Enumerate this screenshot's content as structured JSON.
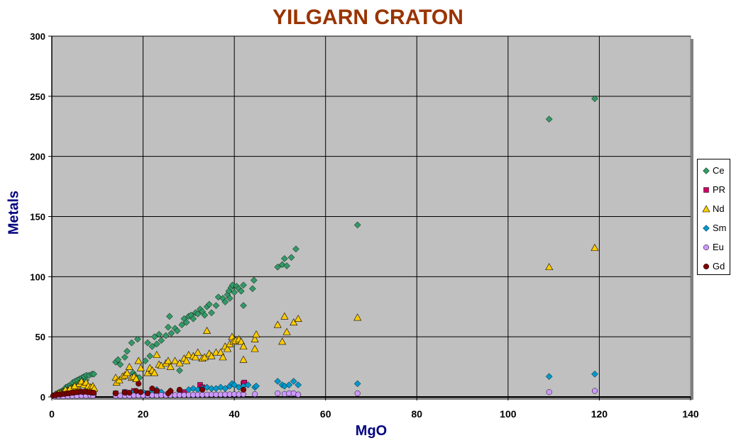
{
  "chart_data": {
    "type": "scatter",
    "title": "YILGARN CRATON",
    "xlabel": "MgO",
    "ylabel": "Metals",
    "xlim": [
      0,
      140
    ],
    "ylim": [
      0,
      300
    ],
    "x_ticks": [
      0,
      20,
      40,
      60,
      80,
      100,
      120,
      140
    ],
    "y_ticks": [
      0,
      50,
      100,
      150,
      200,
      250,
      300
    ],
    "grid": true,
    "legend_position": "right",
    "colors": {
      "plot_background": "#c0c0c0",
      "title": "#993300",
      "axis_titles": "#000080"
    },
    "series": [
      {
        "name": "Ce",
        "marker": "diamond",
        "color": "#339966",
        "points": [
          [
            0.3,
            1
          ],
          [
            0.8,
            2
          ],
          [
            1.2,
            3
          ],
          [
            1.7,
            4
          ],
          [
            2.2,
            5
          ],
          [
            2.7,
            6
          ],
          [
            3.1,
            8
          ],
          [
            3.6,
            9
          ],
          [
            4.1,
            10
          ],
          [
            4.6,
            12
          ],
          [
            5.1,
            13
          ],
          [
            5.6,
            14
          ],
          [
            6.1,
            15
          ],
          [
            6.6,
            16
          ],
          [
            7.1,
            17
          ],
          [
            7.6,
            18
          ],
          [
            8.2,
            18
          ],
          [
            8.8,
            19
          ],
          [
            9.2,
            19
          ],
          [
            1.5,
            2
          ],
          [
            2.5,
            4
          ],
          [
            3.5,
            6
          ],
          [
            4.5,
            8
          ],
          [
            5.5,
            10
          ],
          [
            6.5,
            12
          ],
          [
            7.5,
            14
          ],
          [
            14,
            29
          ],
          [
            14.5,
            31
          ],
          [
            15,
            27
          ],
          [
            16,
            33
          ],
          [
            16.5,
            38
          ],
          [
            17.5,
            45
          ],
          [
            17.8,
            20
          ],
          [
            18.2,
            18
          ],
          [
            18.8,
            48
          ],
          [
            19.2,
            16
          ],
          [
            20.5,
            30
          ],
          [
            21,
            45
          ],
          [
            21.5,
            34
          ],
          [
            22,
            42
          ],
          [
            22.5,
            50
          ],
          [
            23,
            44
          ],
          [
            23.5,
            52
          ],
          [
            24,
            47
          ],
          [
            25,
            51
          ],
          [
            25.5,
            58
          ],
          [
            25.8,
            67
          ],
          [
            26.2,
            53
          ],
          [
            27,
            57
          ],
          [
            27.5,
            55
          ],
          [
            28,
            22
          ],
          [
            28.5,
            60
          ],
          [
            29,
            65
          ],
          [
            29.5,
            62
          ],
          [
            30,
            67
          ],
          [
            30.5,
            68
          ],
          [
            31,
            65
          ],
          [
            31.5,
            70
          ],
          [
            32,
            69
          ],
          [
            32.5,
            73
          ],
          [
            33,
            71
          ],
          [
            33.5,
            68
          ],
          [
            34,
            75
          ],
          [
            34.5,
            77
          ],
          [
            35,
            70
          ],
          [
            36,
            76
          ],
          [
            36.5,
            83
          ],
          [
            37.5,
            82
          ],
          [
            38,
            79
          ],
          [
            38.5,
            85
          ],
          [
            38.8,
            88
          ],
          [
            39,
            82
          ],
          [
            39.3,
            91
          ],
          [
            39.6,
            93
          ],
          [
            40,
            87
          ],
          [
            40.5,
            92
          ],
          [
            41,
            90
          ],
          [
            41.5,
            88
          ],
          [
            42,
            93
          ],
          [
            42,
            76
          ],
          [
            44,
            90
          ],
          [
            44.3,
            97
          ],
          [
            49.5,
            108
          ],
          [
            50.5,
            110
          ],
          [
            51,
            115
          ],
          [
            51.5,
            109
          ],
          [
            52.5,
            116
          ],
          [
            53.5,
            123
          ],
          [
            67,
            143
          ],
          [
            109,
            231
          ],
          [
            119,
            248
          ]
        ]
      },
      {
        "name": "PR",
        "marker": "square",
        "color": "#cc0066",
        "points": [
          [
            0.5,
            1
          ],
          [
            1.5,
            2
          ],
          [
            2.5,
            2
          ],
          [
            3.5,
            3
          ],
          [
            4.5,
            3
          ],
          [
            5.5,
            4
          ],
          [
            6.5,
            4
          ],
          [
            7.5,
            3
          ],
          [
            8.5,
            3
          ],
          [
            9.2,
            3
          ],
          [
            14,
            3
          ],
          [
            16,
            4
          ],
          [
            18,
            5
          ],
          [
            21,
            3
          ],
          [
            23,
            4
          ],
          [
            26,
            3
          ],
          [
            29,
            4
          ],
          [
            32.5,
            10
          ],
          [
            33,
            8
          ],
          [
            42,
            11
          ],
          [
            42.2,
            12
          ]
        ]
      },
      {
        "name": "Nd",
        "marker": "triangle",
        "color": "#ffcc00",
        "points": [
          [
            0.8,
            2
          ],
          [
            1.5,
            3
          ],
          [
            2.5,
            4
          ],
          [
            3.5,
            5
          ],
          [
            4.5,
            7
          ],
          [
            5.5,
            8
          ],
          [
            6,
            11
          ],
          [
            6.5,
            13
          ],
          [
            7,
            10
          ],
          [
            7.5,
            12
          ],
          [
            8,
            9
          ],
          [
            8.5,
            8
          ],
          [
            9,
            9
          ],
          [
            9.3,
            7
          ],
          [
            2,
            3
          ],
          [
            3,
            6
          ],
          [
            4,
            7
          ],
          [
            5,
            9
          ],
          [
            14,
            16
          ],
          [
            14.2,
            12
          ],
          [
            14.8,
            14
          ],
          [
            15.5,
            17
          ],
          [
            16,
            18
          ],
          [
            16.5,
            20
          ],
          [
            17,
            25
          ],
          [
            17.5,
            16
          ],
          [
            18,
            17
          ],
          [
            18.5,
            15
          ],
          [
            19,
            30
          ],
          [
            19.5,
            24
          ],
          [
            21,
            20
          ],
          [
            21.5,
            24
          ],
          [
            22,
            22
          ],
          [
            22.5,
            20
          ],
          [
            23,
            35
          ],
          [
            23.5,
            27
          ],
          [
            24,
            26
          ],
          [
            25,
            28
          ],
          [
            25.5,
            30
          ],
          [
            26,
            25
          ],
          [
            27,
            30
          ],
          [
            28,
            28
          ],
          [
            29,
            32
          ],
          [
            29.5,
            30
          ],
          [
            30,
            35
          ],
          [
            31,
            34
          ],
          [
            31.5,
            33
          ],
          [
            32,
            37
          ],
          [
            33,
            32
          ],
          [
            33.5,
            33
          ],
          [
            34,
            55
          ],
          [
            34.5,
            36
          ],
          [
            35,
            34
          ],
          [
            36,
            37
          ],
          [
            37,
            37
          ],
          [
            37.5,
            33
          ],
          [
            38,
            42
          ],
          [
            38.5,
            40
          ],
          [
            39,
            44
          ],
          [
            39.5,
            50
          ],
          [
            39.8,
            46
          ],
          [
            40.3,
            47
          ],
          [
            41,
            48
          ],
          [
            41.5,
            46
          ],
          [
            42,
            42
          ],
          [
            42,
            31
          ],
          [
            44.5,
            40
          ],
          [
            44.5,
            48
          ],
          [
            44.8,
            52
          ],
          [
            49.5,
            60
          ],
          [
            50.5,
            46
          ],
          [
            51,
            67
          ],
          [
            51.5,
            54
          ],
          [
            53,
            62
          ],
          [
            54,
            65
          ],
          [
            67,
            66
          ],
          [
            109,
            108
          ],
          [
            119,
            124
          ]
        ]
      },
      {
        "name": "Sm",
        "marker": "diamond",
        "color": "#0099cc",
        "points": [
          [
            0.5,
            1
          ],
          [
            1.5,
            1
          ],
          [
            2.5,
            2
          ],
          [
            3.5,
            2
          ],
          [
            4.5,
            3
          ],
          [
            5.5,
            3
          ],
          [
            6.5,
            3
          ],
          [
            7.5,
            3
          ],
          [
            8.5,
            3
          ],
          [
            9,
            3
          ],
          [
            14,
            3
          ],
          [
            16,
            4
          ],
          [
            18,
            4
          ],
          [
            20,
            4
          ],
          [
            22,
            5
          ],
          [
            23,
            6
          ],
          [
            24,
            4
          ],
          [
            26,
            5
          ],
          [
            28,
            5
          ],
          [
            30,
            6
          ],
          [
            31,
            7
          ],
          [
            32,
            6
          ],
          [
            33,
            7
          ],
          [
            34,
            8
          ],
          [
            35,
            7
          ],
          [
            36,
            7
          ],
          [
            37,
            8
          ],
          [
            38,
            7
          ],
          [
            39,
            9
          ],
          [
            39.5,
            11
          ],
          [
            40,
            10
          ],
          [
            41,
            8
          ],
          [
            42,
            9
          ],
          [
            43,
            10
          ],
          [
            44.5,
            8
          ],
          [
            44.8,
            9
          ],
          [
            49.5,
            13
          ],
          [
            50.5,
            10
          ],
          [
            51,
            9
          ],
          [
            52,
            10
          ],
          [
            53,
            13
          ],
          [
            54,
            10
          ],
          [
            67,
            11
          ],
          [
            109,
            17
          ],
          [
            119,
            19
          ]
        ]
      },
      {
        "name": "Eu",
        "marker": "circle",
        "color": "#cc99ff",
        "points": [
          [
            0.5,
            0.3
          ],
          [
            1.5,
            0.5
          ],
          [
            2.5,
            0.5
          ],
          [
            3.5,
            0.7
          ],
          [
            4.5,
            0.8
          ],
          [
            5.5,
            0.8
          ],
          [
            6.5,
            1
          ],
          [
            7.5,
            1
          ],
          [
            8.5,
            1
          ],
          [
            9,
            1
          ],
          [
            14,
            1
          ],
          [
            15,
            1
          ],
          [
            16,
            1
          ],
          [
            17,
            1
          ],
          [
            18,
            1.2
          ],
          [
            19,
            1.2
          ],
          [
            20,
            1.3
          ],
          [
            21,
            1.3
          ],
          [
            22,
            1.4
          ],
          [
            23,
            1.3
          ],
          [
            24,
            1.5
          ],
          [
            25,
            1.4
          ],
          [
            26,
            1.5
          ],
          [
            27,
            1.5
          ],
          [
            28,
            1.6
          ],
          [
            29,
            1.6
          ],
          [
            30,
            1.7
          ],
          [
            31,
            1.7
          ],
          [
            32,
            1.8
          ],
          [
            33,
            1.8
          ],
          [
            34,
            1.9
          ],
          [
            35,
            2
          ],
          [
            36,
            1.9
          ],
          [
            37,
            2
          ],
          [
            38,
            2
          ],
          [
            39,
            2.1
          ],
          [
            40,
            2.2
          ],
          [
            41,
            2.1
          ],
          [
            42,
            2.2
          ],
          [
            44.5,
            2.3
          ],
          [
            49.5,
            3
          ],
          [
            51,
            2.5
          ],
          [
            52,
            3
          ],
          [
            53,
            3
          ],
          [
            54,
            2
          ],
          [
            67,
            3
          ],
          [
            109,
            4
          ],
          [
            119,
            5
          ]
        ]
      },
      {
        "name": "Gd",
        "marker": "circle",
        "color": "#800000",
        "points": [
          [
            0.3,
            1
          ],
          [
            0.8,
            1.5
          ],
          [
            1.3,
            2
          ],
          [
            1.8,
            2
          ],
          [
            2.3,
            2.5
          ],
          [
            2.8,
            2.5
          ],
          [
            3.3,
            3
          ],
          [
            3.8,
            3
          ],
          [
            4.3,
            3.5
          ],
          [
            4.8,
            3.5
          ],
          [
            5.3,
            4
          ],
          [
            5.8,
            4
          ],
          [
            6.3,
            4.5
          ],
          [
            6.8,
            4
          ],
          [
            7.3,
            4.5
          ],
          [
            7.8,
            4
          ],
          [
            8.3,
            4
          ],
          [
            8.8,
            3.5
          ],
          [
            9.2,
            3.5
          ],
          [
            14,
            3
          ],
          [
            16,
            3.5
          ],
          [
            17,
            3.5
          ],
          [
            18.5,
            5
          ],
          [
            19,
            11
          ],
          [
            19.5,
            4
          ],
          [
            21,
            3
          ],
          [
            22,
            7
          ],
          [
            23,
            5
          ],
          [
            25.5,
            3
          ],
          [
            26,
            5
          ],
          [
            28,
            6
          ],
          [
            33,
            6
          ],
          [
            42,
            6
          ]
        ]
      }
    ]
  }
}
